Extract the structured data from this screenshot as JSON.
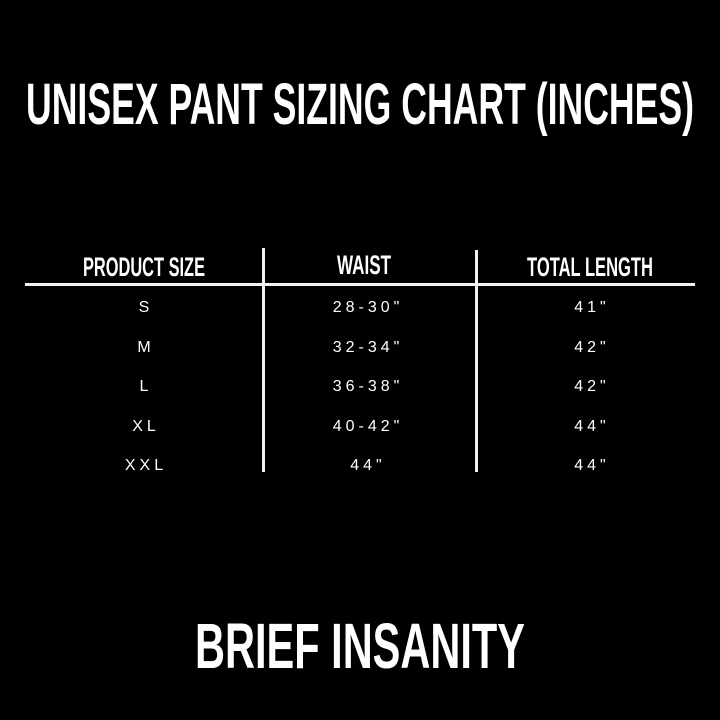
{
  "title": "UNISEX PANT SIZING CHART (INCHES)",
  "table": {
    "headers": [
      "PRODUCT SIZE",
      "WAIST",
      "TOTAL LENGTH"
    ],
    "rows": [
      [
        "S",
        "28-30\"",
        "41\""
      ],
      [
        "M",
        "32-34\"",
        "42\""
      ],
      [
        "L",
        "36-38\"",
        "42\""
      ],
      [
        "XL",
        "40-42\"",
        "44\""
      ],
      [
        "XXL",
        "44\"",
        "44\""
      ]
    ]
  },
  "brand": "BRIEF INSANITY",
  "colors": {
    "background": "#000000",
    "text": "#ffffff"
  }
}
